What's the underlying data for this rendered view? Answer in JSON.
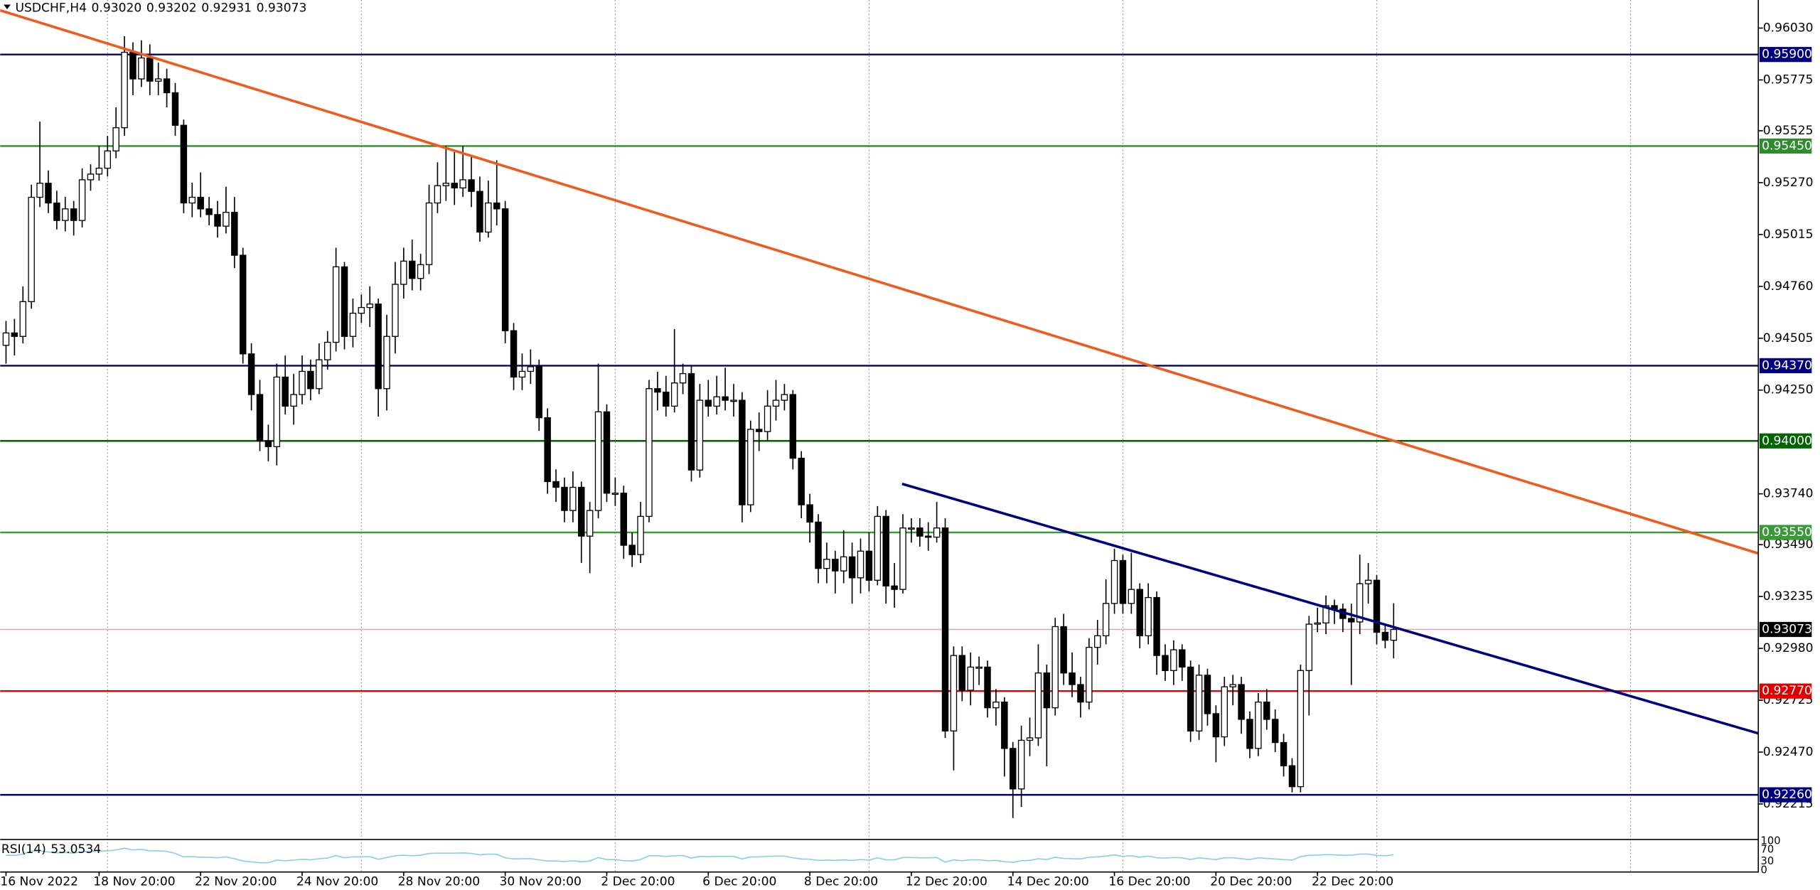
{
  "chart_data": {
    "type": "candlestick",
    "header": {
      "symbol": "USDCHF,H4",
      "ohlc_labels": [
        "0.93020",
        "0.93202",
        "0.92931",
        "0.93073"
      ]
    },
    "up_color": "#ffffff",
    "down_color": "#000000",
    "wick_color": "#000000",
    "open": [
      0.9447,
      0.94531,
      0.94514,
      0.94685,
      0.95198,
      0.95267,
      0.9517,
      0.95084,
      0.95141,
      0.95084,
      0.95284,
      0.95312,
      0.95341,
      0.95426,
      0.9554,
      0.95911,
      0.9578,
      0.95883,
      0.95769,
      0.9578,
      0.95712,
      0.95552,
      0.9517,
      0.95198,
      0.95141,
      0.95113,
      0.95056,
      0.95124,
      0.94913,
      0.94428,
      0.94228,
      0.94,
      0.93972,
      0.94314,
      0.94171,
      0.94228,
      0.94342,
      0.94257,
      0.94399,
      0.94485,
      0.94856,
      0.94514,
      0.94628,
      0.94656,
      0.94673,
      0.94257,
      0.94514,
      0.9477,
      0.94884,
      0.94799,
      0.94867,
      0.9517,
      0.95255,
      0.95267,
      0.95244,
      0.95284,
      0.95227,
      0.95027,
      0.9517,
      0.95141,
      0.94542,
      0.94314,
      0.94342,
      0.94365,
      0.94114,
      0.938,
      0.93772,
      0.93658,
      0.93772,
      0.93532,
      0.93658,
      0.94143,
      0.93743,
      0.93743,
      0.93487,
      0.93441,
      0.93629,
      0.94257,
      0.9424,
      0.94171,
      0.94285,
      0.94331,
      0.93857,
      0.942,
      0.94171,
      0.94217,
      0.942,
      0.942,
      0.93686,
      0.94057,
      0.94046,
      0.94171,
      0.942,
      0.94228,
      0.93915,
      0.93686,
      0.93601,
      0.93373,
      0.93418,
      0.93361,
      0.9343,
      0.93327,
      0.93458,
      0.93315,
      0.93629,
      0.93287,
      0.9327,
      0.93572,
      0.93572,
      0.93532,
      0.93527,
      0.93572,
      0.92574,
      0.92945,
      0.92774,
      0.92888,
      0.92888,
      0.92688,
      0.92716,
      0.92488,
      0.92289,
      0.92528,
      0.9254,
      0.92859,
      0.92688,
      0.93087,
      0.92859,
      0.92802,
      0.92716,
      0.92985,
      0.93042,
      0.93201,
      0.93412,
      0.93201,
      0.9327,
      0.93042,
      0.9323,
      0.92945,
      0.92871,
      0.92973,
      0.92888,
      0.92574,
      0.92848,
      0.92659,
      0.92545,
      0.92791,
      0.92802,
      0.92631,
      0.92488,
      0.92716,
      0.92631,
      0.92517,
      0.92403,
      0.923,
      0.92871,
      0.93099,
      0.93105,
      0.9319,
      0.93173,
      0.93127,
      0.9311,
      0.93298,
      0.93315,
      0.93059,
      0.9302
    ],
    "high": [
      0.9459,
      0.946,
      0.9476,
      0.9526,
      0.9557,
      0.9533,
      0.9523,
      0.952,
      0.9518,
      0.9534,
      0.9536,
      0.9545,
      0.955,
      0.9564,
      0.9599,
      0.9596,
      0.9597,
      0.9595,
      0.9586,
      0.9583,
      0.9576,
      0.9558,
      0.9527,
      0.9532,
      0.952,
      0.9518,
      0.9525,
      0.952,
      0.9495,
      0.9448,
      0.943,
      0.9408,
      0.9438,
      0.9442,
      0.9433,
      0.9442,
      0.944,
      0.9448,
      0.9454,
      0.9495,
      0.9488,
      0.947,
      0.9472,
      0.9476,
      0.947,
      0.9462,
      0.9488,
      0.9495,
      0.9499,
      0.9492,
      0.9526,
      0.9537,
      0.9545,
      0.9542,
      0.9545,
      0.954,
      0.953,
      0.9528,
      0.9538,
      0.9518,
      0.9458,
      0.9443,
      0.9445,
      0.944,
      0.9416,
      0.9386,
      0.9382,
      0.9385,
      0.938,
      0.937,
      0.9438,
      0.9418,
      0.9382,
      0.9378,
      0.9355,
      0.937,
      0.943,
      0.9434,
      0.9432,
      0.9455,
      0.9438,
      0.9437,
      0.9428,
      0.943,
      0.9432,
      0.9436,
      0.9428,
      0.9424,
      0.941,
      0.9414,
      0.9425,
      0.943,
      0.9428,
      0.9425,
      0.9395,
      0.9374,
      0.9364,
      0.935,
      0.9346,
      0.9356,
      0.935,
      0.9352,
      0.9355,
      0.9368,
      0.9366,
      0.934,
      0.9364,
      0.9362,
      0.9362,
      0.936,
      0.937,
      0.9362,
      0.9299,
      0.9299,
      0.9296,
      0.9294,
      0.9292,
      0.9278,
      0.9274,
      0.9252,
      0.926,
      0.9264,
      0.93,
      0.929,
      0.9313,
      0.9315,
      0.9296,
      0.9284,
      0.9303,
      0.9312,
      0.9332,
      0.9347,
      0.9344,
      0.9345,
      0.933,
      0.933,
      0.9326,
      0.93,
      0.9302,
      0.93,
      0.9292,
      0.929,
      0.9288,
      0.927,
      0.9284,
      0.9285,
      0.9284,
      0.9267,
      0.9276,
      0.9278,
      0.9268,
      0.9256,
      0.9244,
      0.929,
      0.9314,
      0.9318,
      0.9324,
      0.9322,
      0.932,
      0.932,
      0.93441,
      0.934,
      0.9334,
      0.931,
      0.93202
    ],
    "low": [
      0.9438,
      0.9442,
      0.9448,
      0.9465,
      0.9515,
      0.9512,
      0.9504,
      0.9503,
      0.9501,
      0.9505,
      0.9523,
      0.9528,
      0.953,
      0.9539,
      0.955,
      0.957,
      0.9574,
      0.957,
      0.957,
      0.9564,
      0.955,
      0.9512,
      0.951,
      0.951,
      0.9506,
      0.95,
      0.9502,
      0.9485,
      0.9438,
      0.9415,
      0.9395,
      0.939,
      0.9388,
      0.9413,
      0.9408,
      0.9418,
      0.942,
      0.9423,
      0.9435,
      0.9444,
      0.9445,
      0.9446,
      0.9458,
      0.9456,
      0.9412,
      0.9415,
      0.9443,
      0.947,
      0.9474,
      0.9474,
      0.9482,
      0.9512,
      0.9518,
      0.9516,
      0.952,
      0.9515,
      0.9498,
      0.95,
      0.9506,
      0.9448,
      0.9425,
      0.9425,
      0.9428,
      0.9405,
      0.9374,
      0.937,
      0.936,
      0.936,
      0.934,
      0.9335,
      0.9362,
      0.937,
      0.9368,
      0.9342,
      0.9338,
      0.934,
      0.936,
      0.9415,
      0.9412,
      0.9414,
      0.9423,
      0.938,
      0.9382,
      0.9412,
      0.9413,
      0.9415,
      0.9412,
      0.936,
      0.9365,
      0.9395,
      0.94,
      0.941,
      0.9415,
      0.9386,
      0.9362,
      0.935,
      0.933,
      0.933,
      0.9325,
      0.933,
      0.932,
      0.9325,
      0.9326,
      0.9329,
      0.932,
      0.9318,
      0.9325,
      0.935,
      0.9348,
      0.9346,
      0.935,
      0.9254,
      0.9238,
      0.9272,
      0.927,
      0.928,
      0.9264,
      0.926,
      0.9235,
      0.92146,
      0.922,
      0.9245,
      0.925,
      0.924,
      0.9265,
      0.928,
      0.9274,
      0.9264,
      0.9268,
      0.929,
      0.93,
      0.9315,
      0.9315,
      0.9315,
      0.9298,
      0.93,
      0.9285,
      0.9282,
      0.928,
      0.9282,
      0.9252,
      0.9253,
      0.926,
      0.9242,
      0.925,
      0.927,
      0.9256,
      0.9244,
      0.9245,
      0.9258,
      0.9247,
      0.9235,
      0.92272,
      0.92272,
      0.9265,
      0.9306,
      0.9305,
      0.931,
      0.9306,
      0.928,
      0.9305,
      0.932,
      0.93,
      0.9298,
      0.92931
    ],
    "close": [
      0.94531,
      0.94514,
      0.94685,
      0.95198,
      0.95267,
      0.9517,
      0.95084,
      0.95141,
      0.95084,
      0.95284,
      0.95312,
      0.95341,
      0.95426,
      0.9554,
      0.95911,
      0.9578,
      0.95883,
      0.95769,
      0.9578,
      0.95712,
      0.95552,
      0.9517,
      0.95198,
      0.95141,
      0.95113,
      0.95056,
      0.95124,
      0.94913,
      0.94428,
      0.94228,
      0.94,
      0.93972,
      0.94314,
      0.94171,
      0.94228,
      0.94342,
      0.94257,
      0.94399,
      0.94485,
      0.94856,
      0.94514,
      0.94628,
      0.94656,
      0.94673,
      0.94257,
      0.94514,
      0.9477,
      0.94884,
      0.94799,
      0.94867,
      0.9517,
      0.95255,
      0.95267,
      0.95244,
      0.95284,
      0.95227,
      0.95027,
      0.9517,
      0.95141,
      0.94542,
      0.94314,
      0.94342,
      0.94365,
      0.94114,
      0.938,
      0.93772,
      0.93658,
      0.93772,
      0.93532,
      0.93658,
      0.94143,
      0.93743,
      0.93743,
      0.93487,
      0.93441,
      0.93629,
      0.94257,
      0.9424,
      0.94171,
      0.94285,
      0.94331,
      0.93857,
      0.942,
      0.94171,
      0.94217,
      0.942,
      0.942,
      0.93686,
      0.94057,
      0.94046,
      0.94171,
      0.942,
      0.94228,
      0.93915,
      0.93686,
      0.93601,
      0.93373,
      0.93418,
      0.93361,
      0.9343,
      0.93327,
      0.93458,
      0.93315,
      0.93629,
      0.93287,
      0.9327,
      0.93572,
      0.93572,
      0.93532,
      0.93527,
      0.93572,
      0.92574,
      0.92945,
      0.92774,
      0.92888,
      0.92888,
      0.92688,
      0.92716,
      0.92488,
      0.92289,
      0.92528,
      0.9254,
      0.92859,
      0.92688,
      0.93087,
      0.92859,
      0.92802,
      0.92716,
      0.92985,
      0.93042,
      0.93201,
      0.93412,
      0.93201,
      0.9327,
      0.93042,
      0.9323,
      0.92945,
      0.92871,
      0.92973,
      0.92888,
      0.92574,
      0.92848,
      0.92659,
      0.92545,
      0.92791,
      0.92802,
      0.92631,
      0.92488,
      0.92716,
      0.92631,
      0.92517,
      0.92403,
      0.923,
      0.92871,
      0.93099,
      0.93105,
      0.9319,
      0.93173,
      0.93127,
      0.9311,
      0.93298,
      0.93315,
      0.93059,
      0.9302,
      0.93073
    ],
    "xlim": [
      -0.69,
      207.1
    ],
    "ylim": [
      0.92043,
      0.96168
    ],
    "yticks": [
      {
        "value": 0.9603,
        "label": "0.96030"
      },
      0.95775,
      0.95525,
      {
        "value": 0.9527,
        "label": "0.95270"
      },
      0.95015,
      {
        "value": 0.9476,
        "label": "0.94760"
      },
      0.94505,
      {
        "value": 0.9425,
        "label": "0.94250"
      },
      {
        "value": 0.9374,
        "label": "0.93740"
      },
      {
        "value": 0.9349,
        "label": "0.93490"
      },
      0.93235,
      {
        "value": 0.9298,
        "label": "0.92980"
      },
      0.92725,
      {
        "value": 0.9247,
        "label": "0.92470"
      },
      0.92215
    ],
    "xticks": [
      {
        "value": 0,
        "label": "16 Nov 2022"
      },
      {
        "value": 11,
        "label": "18 Nov 20:00"
      },
      {
        "value": 23,
        "label": "22 Nov 20:00"
      },
      {
        "value": 35,
        "label": "24 Nov 20:00"
      },
      {
        "value": 47,
        "label": "28 Nov 20:00"
      },
      {
        "value": 59,
        "label": "30 Nov 20:00"
      },
      {
        "value": 71,
        "label": "2 Dec 20:00"
      },
      {
        "value": 83,
        "label": "6 Dec 20:00"
      },
      {
        "value": 95,
        "label": "8 Dec 20:00"
      },
      {
        "value": 107,
        "label": "12 Dec 20:00"
      },
      {
        "value": 119,
        "label": "14 Dec 20:00"
      },
      {
        "value": 131,
        "label": "16 Dec 20:00"
      },
      {
        "value": 143,
        "label": "20 Dec 20:00"
      },
      {
        "value": 155,
        "label": "22 Dec 20:00"
      }
    ],
    "xgrid": [
      12,
      42,
      72,
      102,
      132,
      162,
      192
    ],
    "hlines": [
      {
        "value": 0.959,
        "label": "0.95900",
        "color": "#000080"
      },
      {
        "value": 0.9545,
        "label": "0.95450",
        "color": "#2e8b2e"
      },
      {
        "value": 0.9437,
        "label": "0.94370",
        "color": "#000080"
      },
      {
        "value": 0.94,
        "label": "0.94000",
        "color": "#006400"
      },
      {
        "value": 0.9355,
        "label": "0.93550",
        "color": "#3a9a3a"
      },
      {
        "value": 0.9277,
        "label": "0.92770",
        "color": "#e00000"
      },
      {
        "value": 0.9226,
        "label": "0.92260",
        "color": "#000080"
      }
    ],
    "price_line": {
      "value": 0.93073,
      "label": "0.93073",
      "color": "#000000",
      "line_color": "#d8b0b0"
    },
    "trendlines": [
      {
        "color": "#f05a1e",
        "x": [
          -0.69,
          207.1
        ],
        "y": [
          0.96117,
          0.93447
        ]
      },
      {
        "color": "#000080",
        "x": [
          105.9,
          207.1
        ],
        "y": [
          0.93789,
          0.92562
        ]
      }
    ],
    "rsi": {
      "name": "RSI(14)",
      "color": "#87ceeb",
      "ylim": [
        0,
        100
      ],
      "yticks": [
        100,
        70,
        30,
        0
      ],
      "values": [
        52,
        51,
        56,
        66,
        67,
        63,
        60,
        61,
        59,
        64,
        65,
        66,
        67,
        70,
        76,
        70,
        72,
        67,
        67,
        65,
        58,
        46,
        47,
        45,
        45,
        43,
        46,
        40,
        32,
        29,
        26,
        26,
        35,
        33,
        35,
        38,
        36,
        40,
        42,
        51,
        43,
        46,
        46,
        47,
        38,
        44,
        50,
        52,
        50,
        52,
        58,
        59,
        59,
        59,
        60,
        58,
        53,
        56,
        55,
        43,
        39,
        40,
        40,
        36,
        32,
        32,
        30,
        33,
        29,
        32,
        44,
        37,
        37,
        33,
        32,
        37,
        50,
        50,
        48,
        50,
        51,
        42,
        48,
        47,
        48,
        48,
        48,
        39,
        46,
        46,
        48,
        49,
        49,
        43,
        39,
        38,
        34,
        35,
        34,
        36,
        34,
        37,
        35,
        43,
        36,
        36,
        44,
        44,
        43,
        43,
        44,
        28,
        36,
        33,
        36,
        36,
        33,
        34,
        30,
        27,
        33,
        34,
        40,
        37,
        45,
        41,
        40,
        39,
        45,
        46,
        49,
        53,
        48,
        50,
        45,
        49,
        43,
        42,
        44,
        43,
        37,
        43,
        40,
        37,
        43,
        43,
        40,
        37,
        43,
        41,
        39,
        37,
        35,
        47,
        52,
        52,
        54,
        53,
        52,
        52,
        56,
        56,
        51,
        50,
        53.0534
      ]
    }
  }
}
